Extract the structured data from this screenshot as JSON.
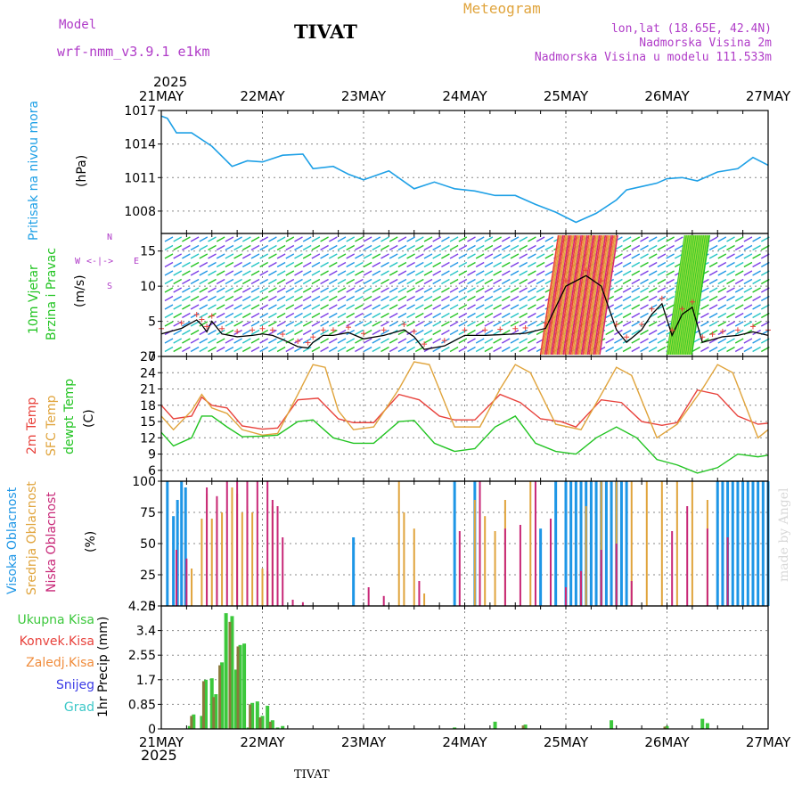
{
  "header": {
    "model_label": "Model",
    "model_name": "wrf-nmm_v3.9.1 e1km",
    "station": "TIVAT",
    "product": "Meteogram",
    "lonlat": "lon,lat (18.65E, 42.4N)",
    "height": "Nadmorska Visina 2m",
    "model_height": "Nadmorska Visina u modelu 111.533m",
    "year_top": "2025",
    "year_bottom": "2025",
    "footer_station": "TIVAT",
    "credit": "made by Angel"
  },
  "colors": {
    "pressure": "#1ea0e6",
    "temp2m": "#e8423c",
    "sfc": "#e0a43c",
    "dewpt": "#22c422",
    "high_cloud": "#1e96e6",
    "mid_cloud": "#e0a43c",
    "low_cloud": "#c82878",
    "total_precip": "#3cc83c",
    "conv_precip": "#e8423c",
    "frozen_precip": "#f08c3c",
    "snow": "#3c3ce6",
    "graupel": "#3cc8c8",
    "purple_text": "#b03cc8",
    "orange_text": "#e0a43c"
  },
  "chart_data": [
    {
      "type": "line",
      "panel": "pressure",
      "ylabel": "Pritisak na nivou mora",
      "unit": "(hPa)",
      "ylim": [
        1006,
        1017
      ],
      "yticks": [
        1008,
        1011,
        1014,
        1017
      ],
      "x_days": [
        "21MAY",
        "22MAY",
        "23MAY",
        "24MAY",
        "25MAY",
        "26MAY",
        "27MAY"
      ],
      "series": [
        {
          "x": [
            0,
            0.06,
            0.15,
            0.3,
            0.5,
            0.7,
            0.85,
            1.0,
            1.2,
            1.4,
            1.5,
            1.7,
            1.85,
            2.0,
            2.25,
            2.5,
            2.7,
            2.9,
            3.1,
            3.3,
            3.5,
            3.7,
            3.9,
            4.1,
            4.3,
            4.5,
            4.6,
            4.75,
            4.9,
            5.0,
            5.15,
            5.3,
            5.5,
            5.7,
            5.85,
            6.0
          ],
          "values": [
            1016.5,
            1016.3,
            1015.0,
            1015.0,
            1013.8,
            1012.0,
            1012.5,
            1012.4,
            1013.0,
            1013.1,
            1011.8,
            1012.0,
            1011.3,
            1010.8,
            1011.6,
            1010.0,
            1010.6,
            1010.0,
            1009.8,
            1009.4,
            1009.4,
            1008.6,
            1007.9,
            1007.0,
            1007.8,
            1009.0,
            1009.9,
            1010.2,
            1010.5,
            1010.9,
            1011.0,
            1010.7,
            1011.5,
            1011.8,
            1012.8,
            1012.1
          ]
        }
      ]
    },
    {
      "type": "line",
      "panel": "wind",
      "ylabel": "10m Vjetar",
      "ylabel2": "Brzina i Pravac",
      "unit": "(m/s)",
      "compass": [
        "N",
        "W",
        "E",
        "S"
      ],
      "ylim": [
        0,
        17.5
      ],
      "yticks": [
        0,
        5,
        10,
        15
      ],
      "series": [
        {
          "name": "speed",
          "x": [
            0,
            0.2,
            0.35,
            0.4,
            0.45,
            0.5,
            0.6,
            0.75,
            0.9,
            1.0,
            1.1,
            1.2,
            1.35,
            1.45,
            1.5,
            1.6,
            1.7,
            1.85,
            2.0,
            2.2,
            2.4,
            2.5,
            2.6,
            2.8,
            3.0,
            3.2,
            3.35,
            3.5,
            3.6,
            3.8,
            4.0,
            4.2,
            4.35,
            4.5,
            4.6,
            4.75,
            4.85,
            4.95,
            5.05,
            5.15,
            5.25,
            5.35,
            5.45,
            5.55,
            5.7,
            5.85,
            6.0
          ],
          "values": [
            3.2,
            4.0,
            5.2,
            4.5,
            3.5,
            5.0,
            3.2,
            2.8,
            3.0,
            3.2,
            3.0,
            2.4,
            1.4,
            1.2,
            2.0,
            3.0,
            3.0,
            3.4,
            2.5,
            3.0,
            3.8,
            2.8,
            1.0,
            1.5,
            3.0,
            3.0,
            3.1,
            3.2,
            3.3,
            4.0,
            10.0,
            11.5,
            10.0,
            3.8,
            2.0,
            3.8,
            6.0,
            7.5,
            3.0,
            6.0,
            7.0,
            2.0,
            2.4,
            2.8,
            3.0,
            3.5,
            3.0
          ]
        }
      ]
    },
    {
      "type": "line",
      "panel": "temperature",
      "ylabel": "2m Temp",
      "ylabel2": "SFC Temp",
      "ylabel3": "dewpt Temp",
      "unit": "(C)",
      "ylim": [
        4,
        27
      ],
      "yticks": [
        6,
        9,
        12,
        15,
        18,
        21,
        24,
        27
      ],
      "series": [
        {
          "name": "2m Temp",
          "x": [
            0,
            0.12,
            0.3,
            0.4,
            0.5,
            0.65,
            0.8,
            1.0,
            1.15,
            1.35,
            1.55,
            1.75,
            1.9,
            2.1,
            2.35,
            2.55,
            2.75,
            2.9,
            3.1,
            3.35,
            3.55,
            3.75,
            3.95,
            4.1,
            4.35,
            4.55,
            4.75,
            4.95,
            5.1,
            5.3,
            5.5,
            5.7,
            5.9,
            6.0
          ],
          "values": [
            18.0,
            15.5,
            16.0,
            19.5,
            18.0,
            17.5,
            14.2,
            13.6,
            13.8,
            19.0,
            19.3,
            15.5,
            14.8,
            14.8,
            20.0,
            19.0,
            16.0,
            15.3,
            15.3,
            20.0,
            18.5,
            15.5,
            15.0,
            14.0,
            19.0,
            18.5,
            15.0,
            14.3,
            14.8,
            20.8,
            20.0,
            16.0,
            14.5,
            14.7
          ]
        },
        {
          "name": "SFC Temp",
          "x": [
            0,
            0.12,
            0.3,
            0.4,
            0.5,
            0.65,
            0.8,
            1.0,
            1.15,
            1.35,
            1.5,
            1.62,
            1.75,
            1.9,
            2.1,
            2.35,
            2.5,
            2.65,
            2.9,
            3.15,
            3.35,
            3.5,
            3.65,
            3.9,
            4.15,
            4.35,
            4.5,
            4.65,
            4.9,
            5.1,
            5.35,
            5.5,
            5.65,
            5.9,
            6.0
          ],
          "values": [
            16.0,
            13.5,
            17.0,
            20.0,
            17.5,
            16.5,
            13.5,
            12.5,
            12.8,
            20.0,
            25.5,
            25.0,
            17.0,
            13.5,
            14.0,
            21.0,
            26.0,
            25.5,
            14.0,
            14.0,
            21.0,
            25.5,
            24.0,
            14.5,
            13.5,
            20.0,
            25.0,
            23.5,
            12.0,
            14.5,
            21.0,
            25.5,
            24.0,
            12.0,
            13.5
          ]
        },
        {
          "name": "dewpt Temp",
          "x": [
            0,
            0.12,
            0.3,
            0.4,
            0.5,
            0.65,
            0.8,
            1.0,
            1.15,
            1.35,
            1.5,
            1.7,
            1.9,
            2.1,
            2.35,
            2.5,
            2.7,
            2.9,
            3.1,
            3.3,
            3.5,
            3.7,
            3.9,
            4.1,
            4.3,
            4.5,
            4.7,
            4.9,
            5.1,
            5.3,
            5.5,
            5.7,
            5.9,
            6.0
          ],
          "values": [
            13.0,
            10.5,
            12.0,
            16.0,
            16.0,
            14.0,
            12.2,
            12.3,
            12.5,
            15.0,
            15.3,
            12.0,
            11.0,
            11.0,
            15.0,
            15.2,
            11.0,
            9.5,
            10.0,
            14.0,
            16.0,
            11.0,
            9.5,
            9.0,
            12.0,
            14.0,
            12.0,
            8.0,
            7.0,
            5.5,
            6.5,
            9.0,
            8.5,
            8.8
          ]
        }
      ]
    },
    {
      "type": "bar",
      "panel": "cloud",
      "ylabel": "Visoka Oblacnost",
      "ylabel2": "Srednja Oblacnost",
      "ylabel3": "Niska Oblacnost",
      "unit": "(%)",
      "ylim": [
        0,
        100
      ],
      "yticks": [
        0,
        25,
        50,
        75,
        100
      ],
      "series": [
        {
          "name": "Visoka Oblacnost",
          "x": [
            0.06,
            0.12,
            0.16,
            0.2,
            0.24,
            1.9,
            2.9,
            3.1,
            3.75,
            3.9,
            4.0,
            4.05,
            4.1,
            4.15,
            4.2,
            4.25,
            4.3,
            4.35,
            4.4,
            4.45,
            4.5,
            4.55,
            4.6,
            5.5,
            5.55,
            5.6,
            5.65,
            5.7,
            5.75,
            5.8,
            5.85,
            5.9,
            5.95,
            6.0
          ],
          "values": [
            100,
            72,
            85,
            100,
            95,
            55,
            100,
            100,
            62,
            100,
            100,
            100,
            100,
            100,
            100,
            100,
            100,
            100,
            100,
            100,
            100,
            100,
            100,
            100,
            100,
            100,
            100,
            100,
            100,
            100,
            100,
            100,
            100,
            100
          ]
        },
        {
          "name": "Srednja Oblacnost",
          "x": [
            0.3,
            0.4,
            0.45,
            0.5,
            0.55,
            0.6,
            0.7,
            0.75,
            0.8,
            0.85,
            0.9,
            1.0,
            1.05,
            1.1,
            2.35,
            2.4,
            2.5,
            2.6,
            3.1,
            3.2,
            3.3,
            3.4,
            3.65,
            4.2,
            4.35,
            4.5,
            4.65,
            4.8,
            4.95,
            5.1,
            5.25,
            5.4
          ],
          "values": [
            30,
            70,
            90,
            70,
            85,
            75,
            95,
            90,
            75,
            80,
            75,
            30,
            28,
            80,
            100,
            75,
            62,
            10,
            85,
            72,
            60,
            85,
            100,
            80,
            100,
            100,
            100,
            100,
            100,
            100,
            100,
            85
          ]
        },
        {
          "name": "Niska Oblacnost",
          "x": [
            0.15,
            0.25,
            0.45,
            0.55,
            0.65,
            0.75,
            0.85,
            0.95,
            1.05,
            1.1,
            1.15,
            1.2,
            1.3,
            1.4,
            2.05,
            2.2,
            2.55,
            2.95,
            3.15,
            3.4,
            3.55,
            3.7,
            3.85,
            4.0,
            4.15,
            4.35,
            4.5,
            4.65,
            5.05,
            5.2,
            5.4,
            5.6
          ],
          "values": [
            45,
            38,
            95,
            88,
            100,
            100,
            100,
            100,
            100,
            85,
            80,
            55,
            5,
            3,
            15,
            8,
            20,
            60,
            100,
            62,
            65,
            100,
            70,
            15,
            28,
            45,
            50,
            20,
            60,
            80,
            62,
            55
          ]
        }
      ]
    },
    {
      "type": "bar",
      "panel": "precip",
      "ylabel": "1hr Precip (mm)",
      "legend": [
        "Ukupna Kisa",
        "Konvek.Kisa",
        "Zaledj.Kisa",
        "Snijeg",
        "Grad"
      ],
      "ylim": [
        0,
        4.25
      ],
      "yticks": [
        0,
        0.85,
        1.7,
        2.55,
        3.4,
        4.25
      ],
      "series": [
        {
          "name": "Ukupna Kisa",
          "x": [
            0.28,
            0.32,
            0.4,
            0.44,
            0.5,
            0.54,
            0.6,
            0.64,
            0.7,
            0.74,
            0.78,
            0.82,
            0.86,
            0.9,
            0.95,
            1.0,
            1.05,
            1.1,
            1.15,
            1.2,
            2.9,
            3.3,
            3.6,
            4.45,
            5.0,
            5.35,
            5.4
          ],
          "values": [
            0.1,
            0.5,
            0.45,
            1.7,
            1.75,
            1.2,
            2.3,
            4.0,
            3.9,
            2.05,
            2.9,
            2.95,
            0.05,
            0.9,
            0.95,
            0.45,
            0.8,
            0.3,
            0.05,
            0.1,
            0.05,
            0.25,
            0.15,
            0.3,
            0.1,
            0.35,
            0.2
          ]
        },
        {
          "name": "Konvek.Kisa",
          "x": [
            0.32,
            0.44,
            0.54,
            0.6,
            0.7,
            0.78,
            0.9,
            1.0,
            1.1,
            3.6,
            5.0
          ],
          "values": [
            0.45,
            1.65,
            1.1,
            2.2,
            3.7,
            2.85,
            0.85,
            0.4,
            0.25,
            0.12,
            0.08
          ]
        }
      ]
    }
  ]
}
